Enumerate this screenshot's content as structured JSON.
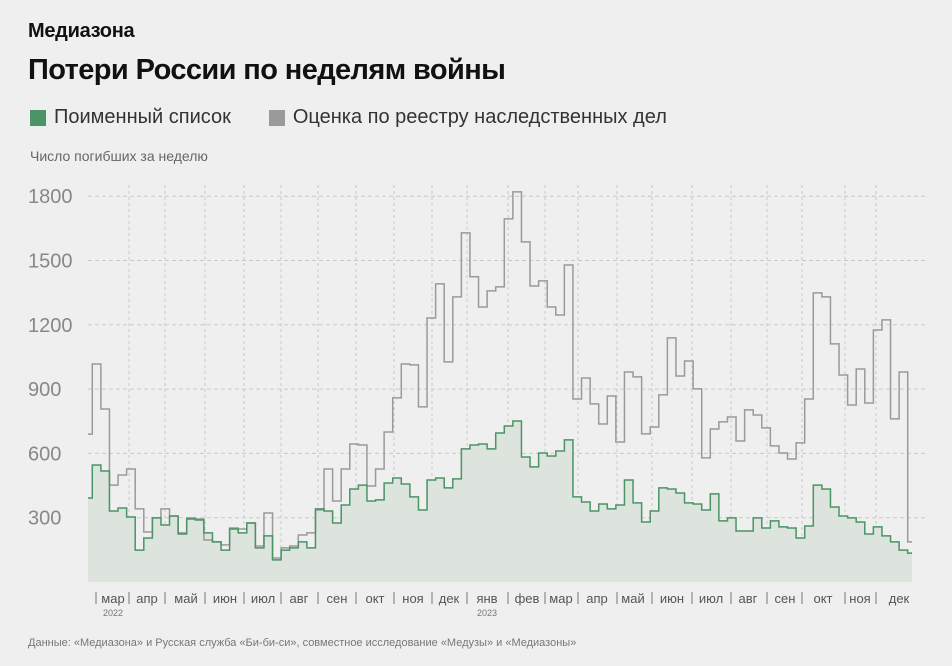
{
  "brand": "Медиазона",
  "title": "Потери России по неделям войны",
  "legend": [
    {
      "label": "Поименный список",
      "color": "#4a9565"
    },
    {
      "label": "Оценка по реестру наследственных дел",
      "color": "#9a9a9a"
    }
  ],
  "source": "Данные: «Медиазона» и Русская служба «Би-би-си», совместное исследование «Медузы» и «Медиазоны»",
  "chart_data": {
    "type": "line",
    "step": true,
    "ylabel": "Число погибших за неделю",
    "ylim": [
      0,
      1850
    ],
    "yticks": [
      300,
      600,
      900,
      1200,
      1500,
      1800
    ],
    "grid": true,
    "legend_position": "top-left",
    "x_month_labels": [
      "мар",
      "апр",
      "май",
      "июн",
      "июл",
      "авг",
      "сен",
      "окт",
      "ноя",
      "дек",
      "янв",
      "фев",
      "мар",
      "апр",
      "май",
      "июн",
      "июл",
      "авг",
      "сен",
      "окт",
      "ноя",
      "дек"
    ],
    "x_year_labels": [
      {
        "label": "2022",
        "month_index": 0
      },
      {
        "label": "2023",
        "month_index": 10
      }
    ],
    "x_range": [
      "2022-02-24",
      "2023-12"
    ],
    "series": [
      {
        "name": "Оценка по реестру наследственных дел",
        "color": "#9a9a9a",
        "fill": false,
        "values": [
          690,
          1017,
          807,
          452,
          499,
          527,
          341,
          233,
          299,
          341,
          308,
          229,
          299,
          294,
          196,
          187,
          173,
          252,
          247,
          275,
          168,
          322,
          112,
          159,
          168,
          219,
          229,
          336,
          527,
          378,
          527,
          644,
          639,
          448,
          527,
          700,
          859,
          1017,
          1013,
          817,
          1232,
          1391,
          1027,
          1330,
          1629,
          1424,
          1283,
          1358,
          1377,
          1694,
          1820,
          1587,
          1381,
          1405,
          1283,
          1246,
          1479,
          854,
          952,
          831,
          737,
          868,
          653,
          980,
          957,
          691,
          723,
          873,
          1139,
          961,
          1031,
          901,
          579,
          714,
          747,
          770,
          658,
          803,
          779,
          719,
          635,
          602,
          574,
          649,
          854,
          1349,
          1330,
          1111,
          966,
          826,
          994,
          835,
          1176,
          1223,
          761,
          980,
          187
        ]
      },
      {
        "name": "Поименный список",
        "color": "#4a9565",
        "fill": true,
        "values": [
          392,
          546,
          518,
          331,
          345,
          303,
          149,
          205,
          299,
          266,
          308,
          224,
          294,
          289,
          229,
          187,
          149,
          247,
          229,
          275,
          159,
          215,
          103,
          149,
          159,
          187,
          159,
          341,
          331,
          275,
          359,
          434,
          452,
          378,
          383,
          462,
          485,
          457,
          397,
          336,
          476,
          485,
          439,
          481,
          621,
          639,
          644,
          621,
          695,
          728,
          751,
          583,
          537,
          602,
          588,
          611,
          663,
          397,
          373,
          331,
          364,
          341,
          359,
          476,
          369,
          280,
          331,
          439,
          434,
          415,
          369,
          364,
          336,
          411,
          285,
          299,
          238,
          238,
          299,
          252,
          285,
          257,
          252,
          205,
          261,
          452,
          434,
          350,
          308,
          299,
          280,
          224,
          257,
          215,
          187,
          149,
          135
        ]
      }
    ]
  }
}
